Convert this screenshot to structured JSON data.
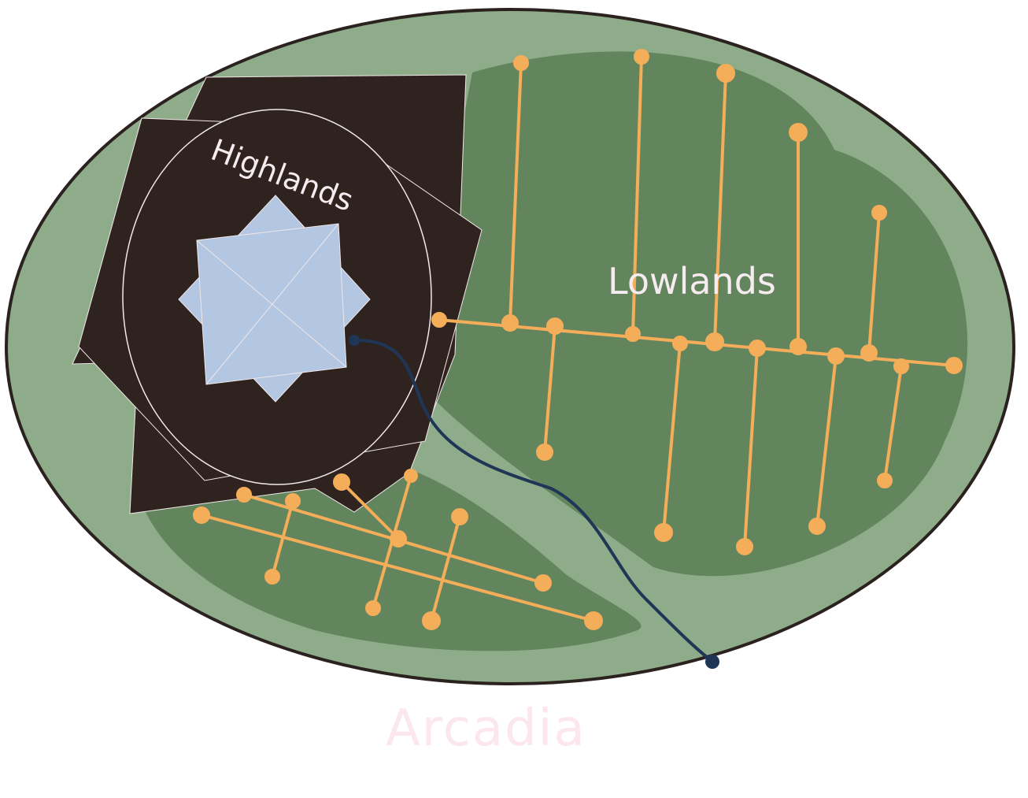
{
  "map": {
    "title": "Arcadia",
    "regions": [
      {
        "name": "Highlands",
        "color": "#2f2320"
      },
      {
        "name": "Lowlands",
        "color": "#63855e"
      }
    ]
  },
  "colors": {
    "land_outer": "#8eac89",
    "land_inner": "#63855e",
    "highlands": "#2f2320",
    "summit": "#b3c6e2",
    "roads": "#f4ad58",
    "river": "#1f3656",
    "outline": "#2b2220",
    "title_text": "#fbe7ec",
    "label_text": "#f6ecef"
  },
  "features": {
    "roads": "orange road network",
    "river": "dark blue river from the Highlands to the coast"
  }
}
